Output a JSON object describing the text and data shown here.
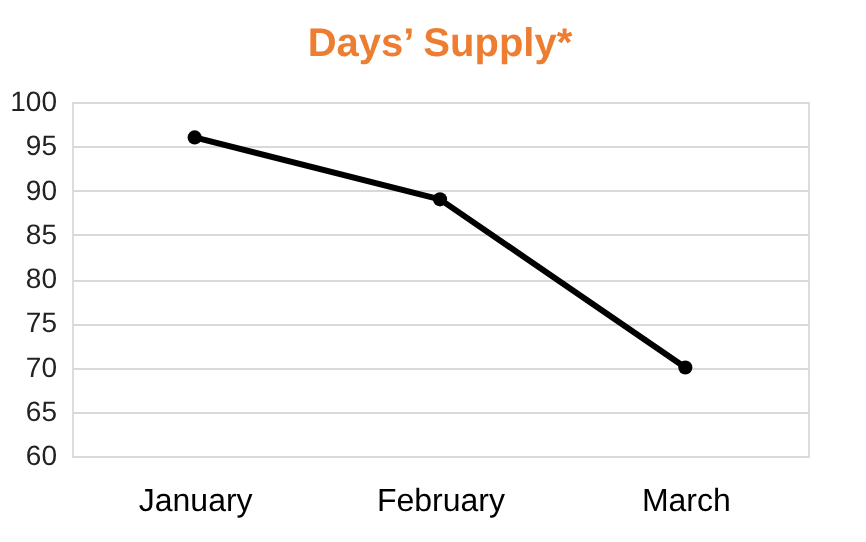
{
  "chart_data": {
    "type": "line",
    "title": "Days’ Supply*",
    "categories": [
      "January",
      "February",
      "March"
    ],
    "series": [
      {
        "color": "#000000",
        "values": [
          96,
          89,
          70
        ]
      }
    ],
    "ylim": [
      60,
      100
    ],
    "yticks": [
      60,
      65,
      70,
      75,
      80,
      85,
      90,
      95,
      100
    ],
    "grid": "y",
    "marker": "circle",
    "line_style": "solid"
  }
}
